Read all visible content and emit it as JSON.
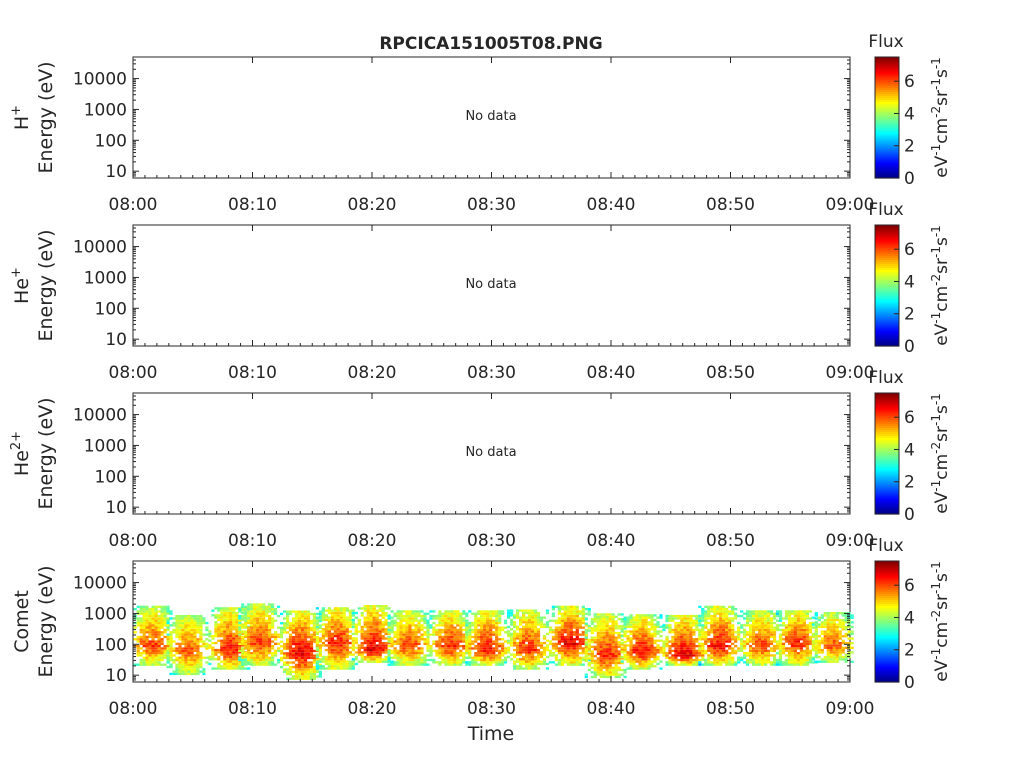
{
  "title": "RPCICA151005T08.PNG",
  "xlabel": "Time",
  "colorbar": {
    "label": "Flux",
    "unit_prefix": "eV",
    "ticks": [
      "0",
      "2",
      "4",
      "6"
    ]
  },
  "x_tick_labels": [
    "08:00",
    "08:10",
    "08:20",
    "08:30",
    "08:40",
    "08:50",
    "09:00"
  ],
  "y_tick_labels": [
    "10",
    "100",
    "1000",
    "10000"
  ],
  "panels": [
    {
      "species": "H",
      "sup": "+",
      "ylabel": "Energy (eV)",
      "message": "No data"
    },
    {
      "species": "He",
      "sup": "+",
      "ylabel": "Energy (eV)",
      "message": "No data"
    },
    {
      "species": "He",
      "sup": "2+",
      "ylabel": "Energy (eV)",
      "message": "No data"
    },
    {
      "species": "Comet",
      "sup": "",
      "ylabel": "Energy (eV)",
      "message": ""
    }
  ],
  "chart_data": [
    {
      "type": "heatmap",
      "title": "RPCICA151005T08.PNG",
      "ylabel": "H+ Energy (eV)",
      "xlabel": "",
      "xlim": [
        "08:00",
        "09:00"
      ],
      "ylim": [
        6,
        50000
      ],
      "yscale": "log",
      "clim": [
        0,
        7.5
      ],
      "colormap": "jet",
      "colorbar_label": "Flux",
      "annotation": "No data",
      "values": []
    },
    {
      "type": "heatmap",
      "ylabel": "He+ Energy (eV)",
      "xlabel": "",
      "xlim": [
        "08:00",
        "09:00"
      ],
      "ylim": [
        6,
        50000
      ],
      "yscale": "log",
      "clim": [
        0,
        7.5
      ],
      "colormap": "jet",
      "colorbar_label": "Flux",
      "annotation": "No data",
      "values": []
    },
    {
      "type": "heatmap",
      "ylabel": "He2+ Energy (eV)",
      "xlabel": "",
      "xlim": [
        "08:00",
        "09:00"
      ],
      "ylim": [
        6,
        50000
      ],
      "yscale": "log",
      "clim": [
        0,
        7.5
      ],
      "colormap": "jet",
      "colorbar_label": "Flux",
      "annotation": "No data",
      "values": []
    },
    {
      "type": "heatmap",
      "ylabel": "Comet Energy (eV)",
      "xlabel": "Time",
      "xlim": [
        "08:00",
        "09:00"
      ],
      "ylim": [
        6,
        50000
      ],
      "yscale": "log",
      "clim": [
        0,
        7.5
      ],
      "colormap": "jet",
      "colorbar_label": "Flux",
      "bursts": [
        {
          "t_min": 1.5,
          "e_min": 20,
          "e_max": 1500,
          "e_peak": 80,
          "flux_peak": 6.2
        },
        {
          "t_min": 4.5,
          "e_min": 10,
          "e_max": 800,
          "e_peak": 60,
          "flux_peak": 6.0
        },
        {
          "t_min": 8.0,
          "e_min": 15,
          "e_max": 1500,
          "e_peak": 60,
          "flux_peak": 6.5
        },
        {
          "t_min": 10.5,
          "e_min": 20,
          "e_max": 1800,
          "e_peak": 100,
          "flux_peak": 6.3
        },
        {
          "t_min": 14.0,
          "e_min": 7,
          "e_max": 1200,
          "e_peak": 50,
          "flux_peak": 6.8
        },
        {
          "t_min": 17.0,
          "e_min": 15,
          "e_max": 1500,
          "e_peak": 100,
          "flux_peak": 6.5
        },
        {
          "t_min": 20.0,
          "e_min": 25,
          "e_max": 1800,
          "e_peak": 60,
          "flux_peak": 6.8
        },
        {
          "t_min": 23.0,
          "e_min": 20,
          "e_max": 1200,
          "e_peak": 80,
          "flux_peak": 6.2
        },
        {
          "t_min": 26.5,
          "e_min": 20,
          "e_max": 1200,
          "e_peak": 80,
          "flux_peak": 6.4
        },
        {
          "t_min": 29.5,
          "e_min": 20,
          "e_max": 1200,
          "e_peak": 60,
          "flux_peak": 6.6
        },
        {
          "t_min": 33.0,
          "e_min": 15,
          "e_max": 1200,
          "e_peak": 60,
          "flux_peak": 6.4
        },
        {
          "t_min": 36.5,
          "e_min": 20,
          "e_max": 1500,
          "e_peak": 100,
          "flux_peak": 6.8
        },
        {
          "t_min": 39.5,
          "e_min": 8,
          "e_max": 1000,
          "e_peak": 40,
          "flux_peak": 6.4
        },
        {
          "t_min": 42.5,
          "e_min": 15,
          "e_max": 800,
          "e_peak": 50,
          "flux_peak": 6.6
        },
        {
          "t_min": 46.0,
          "e_min": 20,
          "e_max": 800,
          "e_peak": 40,
          "flux_peak": 6.8
        },
        {
          "t_min": 49.0,
          "e_min": 20,
          "e_max": 1500,
          "e_peak": 80,
          "flux_peak": 6.6
        },
        {
          "t_min": 52.5,
          "e_min": 20,
          "e_max": 1200,
          "e_peak": 80,
          "flux_peak": 6.2
        },
        {
          "t_min": 55.5,
          "e_min": 20,
          "e_max": 1200,
          "e_peak": 100,
          "flux_peak": 6.4
        },
        {
          "t_min": 58.5,
          "e_min": 25,
          "e_max": 1000,
          "e_peak": 80,
          "flux_peak": 6.0
        }
      ]
    }
  ]
}
